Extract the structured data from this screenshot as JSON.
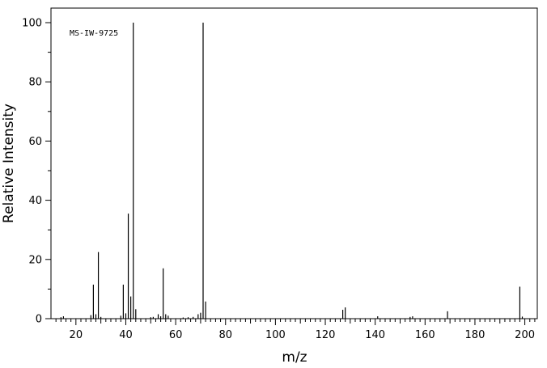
{
  "chart_data": {
    "type": "bar",
    "annotation": "MS-IW-9725",
    "xlabel": "m/z",
    "ylabel": "Relative Intensity",
    "xlim": [
      10,
      205
    ],
    "ylim": [
      0,
      100
    ],
    "x_ticks": [
      20,
      40,
      60,
      80,
      100,
      120,
      140,
      160,
      180,
      200
    ],
    "y_ticks": [
      0,
      20,
      40,
      60,
      80,
      100
    ],
    "grid": false,
    "peaks": [
      {
        "mz": 14,
        "intensity": 0.5
      },
      {
        "mz": 15,
        "intensity": 0.8
      },
      {
        "mz": 26,
        "intensity": 1.2
      },
      {
        "mz": 27,
        "intensity": 11.5
      },
      {
        "mz": 28,
        "intensity": 1.5
      },
      {
        "mz": 29,
        "intensity": 22.5
      },
      {
        "mz": 30,
        "intensity": 0.6
      },
      {
        "mz": 38,
        "intensity": 1.0
      },
      {
        "mz": 39,
        "intensity": 11.5
      },
      {
        "mz": 40,
        "intensity": 1.8
      },
      {
        "mz": 41,
        "intensity": 35.5
      },
      {
        "mz": 42,
        "intensity": 7.5
      },
      {
        "mz": 43,
        "intensity": 100
      },
      {
        "mz": 44,
        "intensity": 3.2
      },
      {
        "mz": 50,
        "intensity": 0.5
      },
      {
        "mz": 51,
        "intensity": 0.6
      },
      {
        "mz": 53,
        "intensity": 1.5
      },
      {
        "mz": 54,
        "intensity": 0.8
      },
      {
        "mz": 55,
        "intensity": 17.0
      },
      {
        "mz": 56,
        "intensity": 1.5
      },
      {
        "mz": 57,
        "intensity": 1.0
      },
      {
        "mz": 63,
        "intensity": 0.4
      },
      {
        "mz": 65,
        "intensity": 0.5
      },
      {
        "mz": 67,
        "intensity": 0.6
      },
      {
        "mz": 69,
        "intensity": 1.5
      },
      {
        "mz": 70,
        "intensity": 2.0
      },
      {
        "mz": 71,
        "intensity": 100
      },
      {
        "mz": 72,
        "intensity": 5.8
      },
      {
        "mz": 127,
        "intensity": 3.0
      },
      {
        "mz": 128,
        "intensity": 3.8
      },
      {
        "mz": 141,
        "intensity": 0.8
      },
      {
        "mz": 154,
        "intensity": 0.6
      },
      {
        "mz": 155,
        "intensity": 0.8
      },
      {
        "mz": 169,
        "intensity": 2.5
      },
      {
        "mz": 198,
        "intensity": 10.8
      },
      {
        "mz": 199,
        "intensity": 0.7
      }
    ]
  }
}
